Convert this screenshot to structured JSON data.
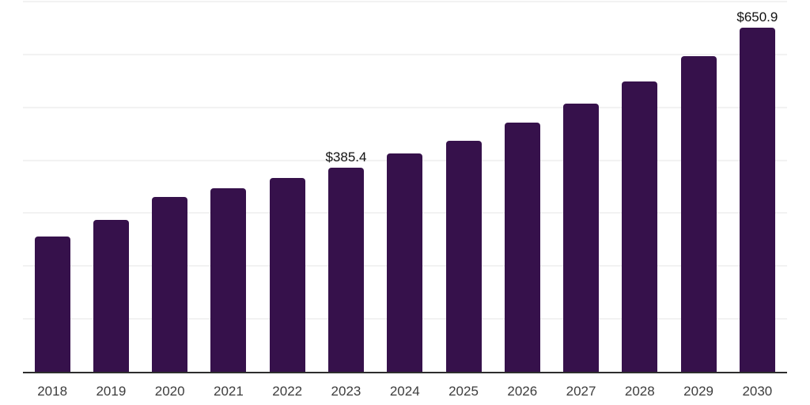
{
  "chart_data": {
    "type": "bar",
    "title": "",
    "xlabel": "",
    "ylabel": "",
    "categories": [
      "2018",
      "2019",
      "2020",
      "2021",
      "2022",
      "2023",
      "2024",
      "2025",
      "2026",
      "2027",
      "2028",
      "2029",
      "2030"
    ],
    "values": [
      256.5,
      286.5,
      330.0,
      346.5,
      366.5,
      385.4,
      412.5,
      437.5,
      471.0,
      507.0,
      548.5,
      597.5,
      650.9
    ],
    "annotations": [
      {
        "category": "2023",
        "text": "$385.4"
      },
      {
        "category": "2030",
        "text": "$650.9"
      }
    ],
    "ylim": [
      0,
      700
    ],
    "gridline_step": 100,
    "grid": "horizontal",
    "legend": "none",
    "y_axis_tick_labels_visible": false
  },
  "colors": {
    "background": "#ffffff",
    "bar": "#36114B",
    "gridline": "#f2f2f2",
    "axis_line": "#2e2e2e",
    "tick_label": "#3d3d3d",
    "annotation": "#111111"
  }
}
